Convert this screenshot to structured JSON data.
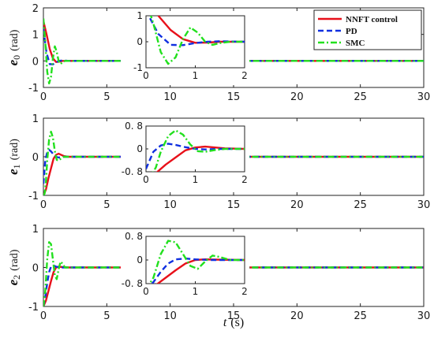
{
  "chart_data": [
    {
      "type": "line",
      "panel": "e0",
      "ylabel": {
        "main": "e",
        "sub": "0",
        "unit": "(rad)"
      },
      "xlim": [
        0,
        30
      ],
      "ylim": [
        -1,
        2
      ],
      "xticks": [
        "0",
        "5",
        "10",
        "15",
        "20",
        "25",
        "30"
      ],
      "yticks": [
        "-1",
        "0",
        "1",
        "2"
      ],
      "legend": {
        "placement": "top-right",
        "entries": [
          "NNFT control",
          "PD",
          "SMC"
        ]
      },
      "series": [
        {
          "name": "NNFT control",
          "color": "#e8101a",
          "style": "solid",
          "x": [
            0,
            0.25,
            0.5,
            0.75,
            1.0,
            1.25,
            1.5,
            1.75,
            2.0,
            30
          ],
          "y": [
            1.5,
            1.0,
            0.45,
            0.1,
            -0.04,
            -0.03,
            0.0,
            0.0,
            0.0,
            0.0
          ]
        },
        {
          "name": "PD",
          "color": "#1030e0",
          "style": "dashed",
          "x": [
            0,
            0.25,
            0.5,
            0.75,
            1.0,
            1.25,
            1.5,
            1.75,
            2.0,
            30
          ],
          "y": [
            1.2,
            0.3,
            -0.12,
            -0.13,
            -0.05,
            0.0,
            0.02,
            0.01,
            0.0,
            0.0
          ]
        },
        {
          "name": "SMC",
          "color": "#22e01e",
          "style": "dashdot",
          "x": [
            0,
            0.15,
            0.3,
            0.45,
            0.6,
            0.75,
            0.9,
            1.05,
            1.2,
            1.35,
            1.5,
            1.7,
            2.0,
            30
          ],
          "y": [
            1.6,
            0.7,
            -0.4,
            -0.85,
            -0.6,
            0.1,
            0.55,
            0.35,
            0.0,
            -0.12,
            -0.05,
            0.0,
            0.0,
            0.0
          ]
        }
      ],
      "inset": {
        "xlim": [
          0,
          2
        ],
        "ylim": [
          -1,
          1
        ],
        "xticks": [
          "0",
          "1",
          "2"
        ],
        "yticks": [
          "-1",
          "0",
          "1"
        ]
      }
    },
    {
      "type": "line",
      "panel": "e1",
      "ylabel": {
        "main": "e",
        "sub": "1",
        "unit": "(rad)"
      },
      "xlim": [
        0,
        30
      ],
      "ylim": [
        -1,
        1
      ],
      "xticks": [
        "0",
        "5",
        "10",
        "15",
        "20",
        "25",
        "30"
      ],
      "yticks": [
        "-1",
        "0",
        "1"
      ],
      "series": [
        {
          "name": "NNFT control",
          "color": "#e8101a",
          "style": "solid",
          "x": [
            0,
            0.2,
            0.4,
            0.6,
            0.8,
            1.0,
            1.2,
            1.4,
            1.6,
            2.0,
            30
          ],
          "y": [
            -1.0,
            -0.85,
            -0.55,
            -0.3,
            -0.05,
            0.05,
            0.08,
            0.05,
            0.02,
            0.0,
            0.0
          ]
        },
        {
          "name": "PD",
          "color": "#1030e0",
          "style": "dashed",
          "x": [
            0,
            0.15,
            0.3,
            0.45,
            0.6,
            0.8,
            1.0,
            1.2,
            1.5,
            2.0,
            30
          ],
          "y": [
            -0.7,
            -0.1,
            0.12,
            0.18,
            0.14,
            0.06,
            0.0,
            -0.02,
            0.0,
            0.0,
            0.0
          ]
        },
        {
          "name": "SMC",
          "color": "#22e01e",
          "style": "dashdot",
          "x": [
            0,
            0.1,
            0.2,
            0.3,
            0.45,
            0.6,
            0.75,
            0.9,
            1.05,
            1.2,
            1.4,
            1.6,
            2.0,
            30
          ],
          "y": [
            -1.0,
            -0.95,
            -0.65,
            -0.1,
            0.45,
            0.65,
            0.5,
            0.15,
            -0.08,
            -0.1,
            -0.04,
            0.0,
            0.0,
            0.0
          ]
        }
      ],
      "inset": {
        "xlim": [
          0,
          2
        ],
        "ylim": [
          -0.8,
          0.8
        ],
        "xticks": [
          "0",
          "1",
          "2"
        ],
        "yticks": [
          "0. 8",
          "0",
          "-0. 8"
        ]
      }
    },
    {
      "type": "line",
      "panel": "e2",
      "ylabel": {
        "main": "e",
        "sub": "2",
        "unit": "(rad)"
      },
      "xlim": [
        0,
        30
      ],
      "ylim": [
        -1,
        1
      ],
      "xticks": [
        "0",
        "5",
        "10",
        "15",
        "20",
        "25",
        "30"
      ],
      "yticks": [
        "-1",
        "0",
        "1"
      ],
      "series": [
        {
          "name": "NNFT control",
          "color": "#e8101a",
          "style": "solid",
          "x": [
            0,
            0.2,
            0.4,
            0.6,
            0.8,
            1.0,
            1.2,
            1.5,
            2.0,
            30
          ],
          "y": [
            -1.0,
            -0.85,
            -0.6,
            -0.35,
            -0.12,
            0.0,
            0.02,
            0.01,
            0.0,
            0.0
          ]
        },
        {
          "name": "PD",
          "color": "#1030e0",
          "style": "dashed",
          "x": [
            0,
            0.15,
            0.3,
            0.45,
            0.6,
            0.8,
            1.0,
            1.3,
            2.0,
            30
          ],
          "y": [
            -1.0,
            -0.75,
            -0.4,
            -0.12,
            0.02,
            0.05,
            0.02,
            0.0,
            0.0,
            0.0
          ]
        },
        {
          "name": "SMC",
          "color": "#22e01e",
          "style": "dashdot",
          "x": [
            0,
            0.15,
            0.3,
            0.45,
            0.6,
            0.75,
            0.9,
            1.05,
            1.2,
            1.35,
            1.5,
            1.7,
            2.0,
            30
          ],
          "y": [
            -1.0,
            -0.6,
            0.2,
            0.65,
            0.6,
            0.2,
            -0.2,
            -0.3,
            -0.05,
            0.15,
            0.1,
            0.0,
            0.0,
            0.0
          ]
        }
      ],
      "inset": {
        "xlim": [
          0,
          2
        ],
        "ylim": [
          -0.8,
          0.8
        ],
        "xticks": [
          "0",
          "1",
          "2"
        ],
        "yticks": [
          "0. 8",
          "0",
          "-0. 8"
        ]
      }
    }
  ],
  "xlabel": {
    "var": "t",
    "unit": "(s)"
  }
}
